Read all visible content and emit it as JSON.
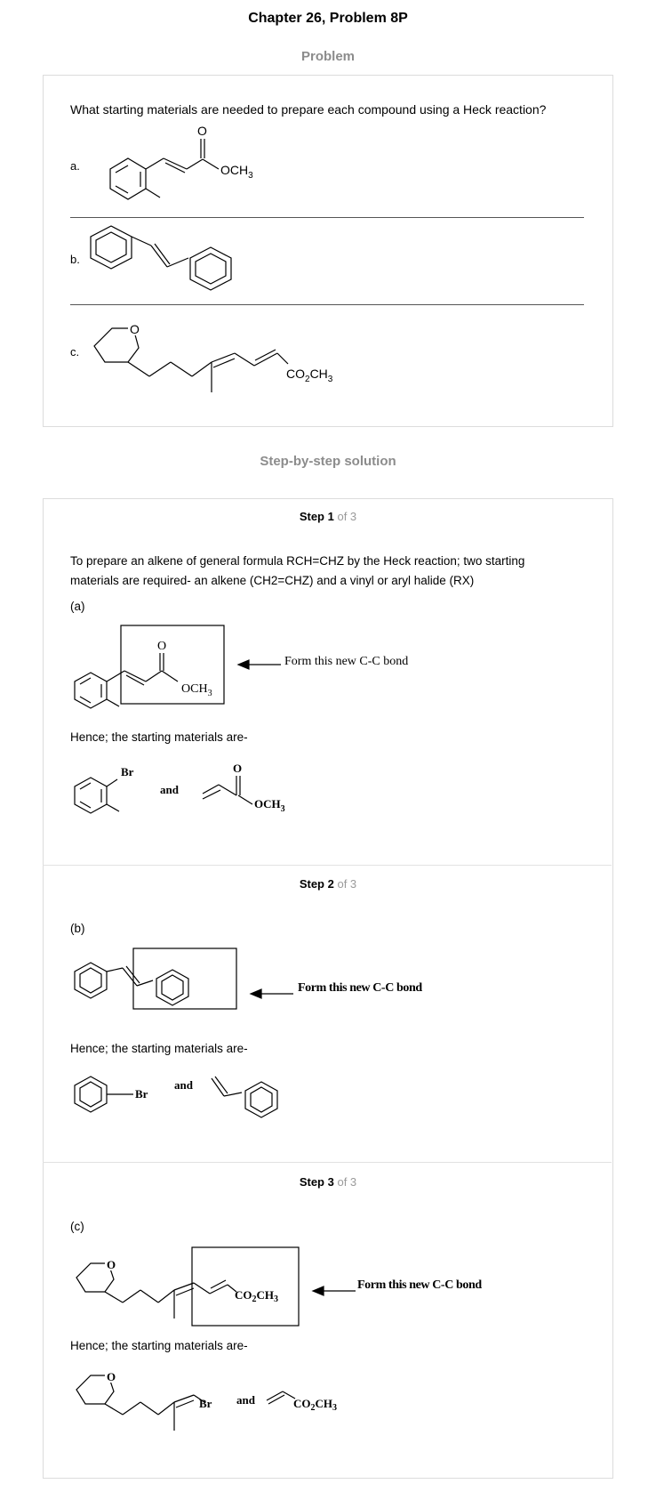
{
  "header": {
    "title": "Chapter 26, Problem 8P",
    "problem_label": "Problem",
    "solution_label": "Step-by-step solution"
  },
  "problem": {
    "question": "What starting materials are needed to prepare each compound using a Heck reaction?",
    "parts": [
      {
        "label": "a.",
        "substituent": "OCH3",
        "carbonyl": "O"
      },
      {
        "label": "b."
      },
      {
        "label": "c.",
        "heteroatom": "O",
        "substituent": "CO2CH3"
      }
    ]
  },
  "steps": [
    {
      "step_word": "Step 1",
      "of_text": "of 3",
      "intro_line1": "To prepare an alkene of general formula RCH=CHZ by the Heck reaction; two starting",
      "intro_line2": "materials are required- an alkene (CH2=CHZ) and a vinyl or aryl halide (RX)",
      "part_label": "(a)",
      "bond_note": "Form this new C-C bond",
      "hence": "Hence; the starting materials are-",
      "halide": "Br",
      "and_word": "and",
      "carbonyl": "O",
      "substituent": "OCH3"
    },
    {
      "step_word": "Step 2",
      "of_text": "of 3",
      "part_label": "(b)",
      "bond_note": "Form this new C-C bond",
      "hence": "Hence; the starting materials are-",
      "halide": "Br",
      "and_word": "and"
    },
    {
      "step_word": "Step 3",
      "of_text": "of 3",
      "part_label": "(c)",
      "bond_note": "Form this new C-C bond",
      "hence": "Hence; the starting materials are-",
      "halide": "Br",
      "and_word": "and",
      "heteroatom": "O",
      "substituent": "CO2CH3"
    }
  ]
}
